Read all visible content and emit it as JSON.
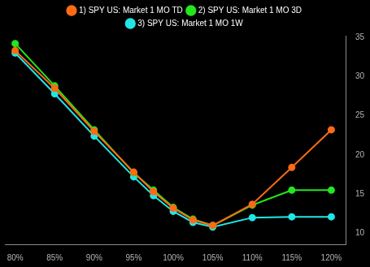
{
  "chart_data": {
    "type": "line",
    "x": [
      80,
      85,
      90,
      95,
      97.5,
      100,
      102.5,
      105,
      110,
      115,
      120
    ],
    "xlim": [
      78.7,
      121.9
    ],
    "xticks": [
      {
        "value": 80,
        "label": "80%"
      },
      {
        "value": 85,
        "label": "85%"
      },
      {
        "value": 90,
        "label": "90%"
      },
      {
        "value": 95,
        "label": "95%"
      },
      {
        "value": 100,
        "label": "100%"
      },
      {
        "value": 105,
        "label": "105%"
      },
      {
        "value": 110,
        "label": "110%"
      },
      {
        "value": 115,
        "label": "115%"
      },
      {
        "value": 120,
        "label": "120%"
      }
    ],
    "ylim": [
      8.6,
      35.2
    ],
    "yticks": [
      10,
      15,
      20,
      25,
      30,
      35
    ],
    "grid": false,
    "legend": "top",
    "marker": "circle",
    "series": [
      {
        "name": "1) SPY US: Market 1 MO TD",
        "color": "#ff6a13",
        "values": [
          33.3,
          28.5,
          23.0,
          17.8,
          15.3,
          13.2,
          11.7,
          11.0,
          13.7,
          18.4,
          23.2
        ]
      },
      {
        "name": "2) SPY US: Market 1 MO 3D",
        "color": "#22e61e",
        "values": [
          34.2,
          28.8,
          23.2,
          17.7,
          15.5,
          13.3,
          11.8,
          11.0,
          13.6,
          15.5,
          15.5
        ]
      },
      {
        "name": "3) SPY US: Market 1 MO 1W",
        "color": "#22e6e6",
        "values": [
          33.0,
          27.8,
          22.4,
          17.2,
          14.8,
          12.8,
          11.4,
          10.8,
          12.0,
          12.1,
          12.1
        ]
      }
    ]
  }
}
